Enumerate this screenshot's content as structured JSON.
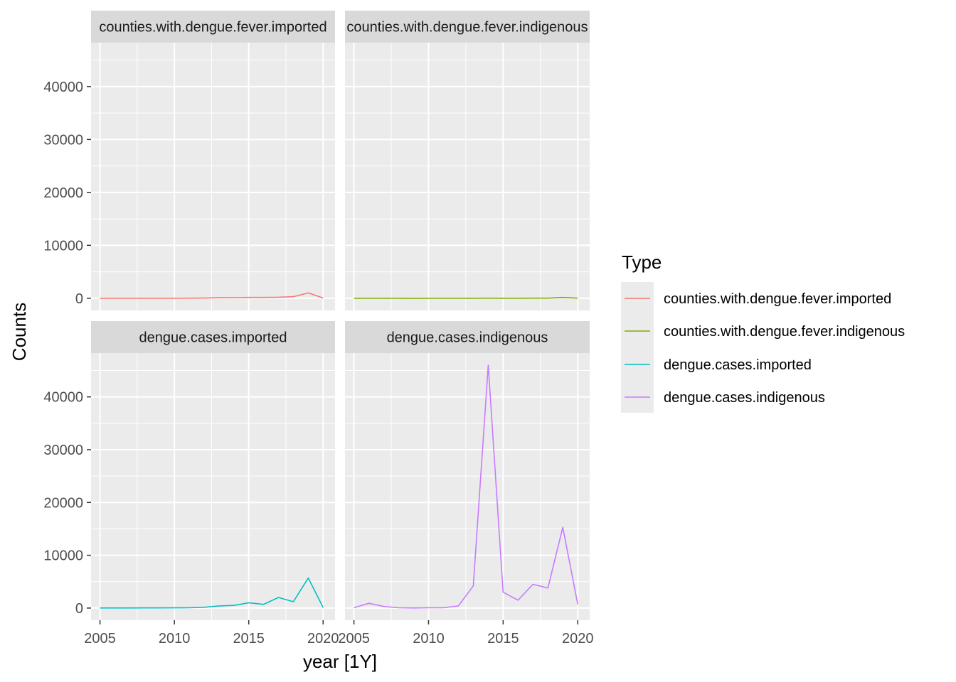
{
  "chart_data": {
    "type": "line",
    "xlabel": "year [1Y]",
    "ylabel": "Counts",
    "xlim": [
      2004.4,
      2020.8
    ],
    "ylim": [
      -2300,
      48300
    ],
    "x_ticks": [
      2005,
      2010,
      2015,
      2020
    ],
    "y_ticks": [
      0,
      10000,
      20000,
      30000,
      40000
    ],
    "y_tick_labels": [
      "0",
      "10000",
      "20000",
      "30000",
      "40000"
    ],
    "x_tick_labels": [
      "2005",
      "2010",
      "2015",
      "2020"
    ],
    "legend": {
      "title": "Type",
      "position": "right",
      "entries": [
        {
          "label": "counties.with.dengue.fever.imported",
          "color": "#F8766D"
        },
        {
          "label": "counties.with.dengue.fever.indigenous",
          "color": "#7CAE00"
        },
        {
          "label": "dengue.cases.imported",
          "color": "#00BFC4"
        },
        {
          "label": "dengue.cases.indigenous",
          "color": "#C77CFF"
        }
      ]
    },
    "x": [
      2005,
      2006,
      2007,
      2008,
      2009,
      2010,
      2011,
      2012,
      2013,
      2014,
      2015,
      2016,
      2017,
      2018,
      2019,
      2020
    ],
    "series": [
      {
        "name": "counties.with.dengue.fever.imported",
        "panel_title": "counties.with.dengue.fever.imported",
        "color": "#F8766D",
        "values": [
          5,
          8,
          10,
          12,
          10,
          15,
          20,
          30,
          100,
          120,
          150,
          160,
          200,
          300,
          1000,
          50
        ]
      },
      {
        "name": "counties.with.dengue.fever.indigenous",
        "panel_title": "counties.with.dengue.fever.indigenous",
        "color": "#7CAE00",
        "values": [
          2,
          3,
          2,
          2,
          1,
          2,
          2,
          3,
          10,
          20,
          15,
          15,
          20,
          20,
          150,
          20
        ]
      },
      {
        "name": "dengue.cases.imported",
        "panel_title": "dengue.cases.imported",
        "color": "#00BFC4",
        "values": [
          20,
          20,
          20,
          30,
          30,
          40,
          60,
          150,
          400,
          500,
          1000,
          700,
          2000,
          1200,
          5700,
          100
        ]
      },
      {
        "name": "dengue.cases.indigenous",
        "panel_title": "dengue.cases.indigenous",
        "color": "#C77CFF",
        "values": [
          50,
          900,
          300,
          50,
          20,
          50,
          50,
          400,
          4200,
          46000,
          3000,
          1500,
          4500,
          3800,
          15300,
          700
        ]
      }
    ]
  }
}
